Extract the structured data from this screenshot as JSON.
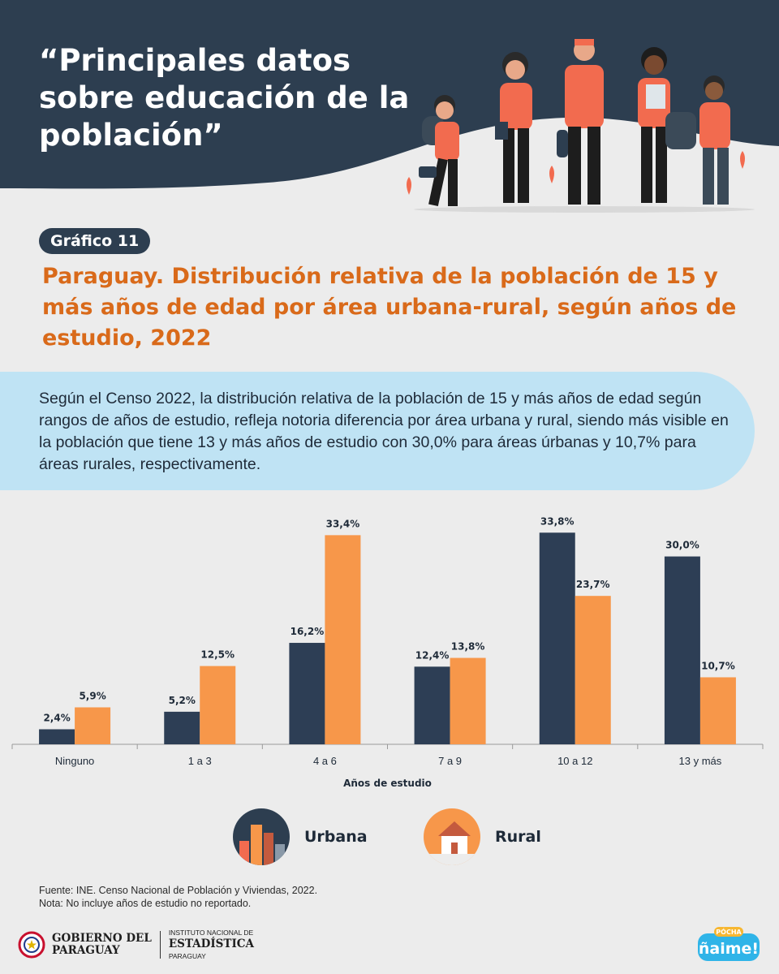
{
  "header": {
    "title": "“Principales datos sobre educación de la población”",
    "bg_color": "#2d3e50"
  },
  "badge": {
    "label": "Gráfico 11"
  },
  "chart_title": "Paraguay. Distribución relativa de la población de 15 y más años de edad por área urbana-rural, según años de estudio, 2022",
  "summary": "Según el Censo 2022, la distribución relativa de la población de 15 y más años de edad según rangos de años de estudio, refleja notoria diferencia por área urbana y rural, siendo más visible en la población que tiene 13 y más años de estudio con 30,0% para áreas úrbanas y 10,7% para áreas rurales, respectivamente.",
  "chart_data": {
    "type": "bar",
    "categories": [
      "Ninguno",
      "1 a 3",
      "4 a 6",
      "7 a 9",
      "10 a 12",
      "13 y más"
    ],
    "series": [
      {
        "name": "Urbana",
        "color": "#2d3e55",
        "values": [
          2.4,
          5.2,
          16.2,
          12.4,
          33.8,
          30.0
        ],
        "labels": [
          "2,4%",
          "5,2%",
          "16,2%",
          "12,4%",
          "33,8%",
          "30,0%"
        ]
      },
      {
        "name": "Rural",
        "color": "#f7974a",
        "values": [
          5.9,
          12.5,
          33.4,
          13.8,
          23.7,
          10.7
        ],
        "labels": [
          "5,9%",
          "12,5%",
          "33,4%",
          "13,8%",
          "23,7%",
          "10,7%"
        ]
      }
    ],
    "xlabel": "Años de estudio",
    "ylabel": "",
    "ylim": [
      0,
      35
    ],
    "grid": false,
    "legend": "bottom"
  },
  "legend": {
    "urbana": "Urbana",
    "rural": "Rural"
  },
  "footer": {
    "source": "Fuente: INE. Censo Nacional de Población y Viviendas, 2022.",
    "note": "Nota: No incluye años de estudio no reportado.",
    "gov_line1": "GOBIERNO DEL",
    "gov_line2": "PARAGUAY",
    "ine_line1": "INSTITUTO NACIONAL DE",
    "ine_line2": "ESTADÍSTICA",
    "ine_line3": "PARAGUAY",
    "naime_small": "PÓCHA",
    "naime_big": "ñaime!"
  }
}
